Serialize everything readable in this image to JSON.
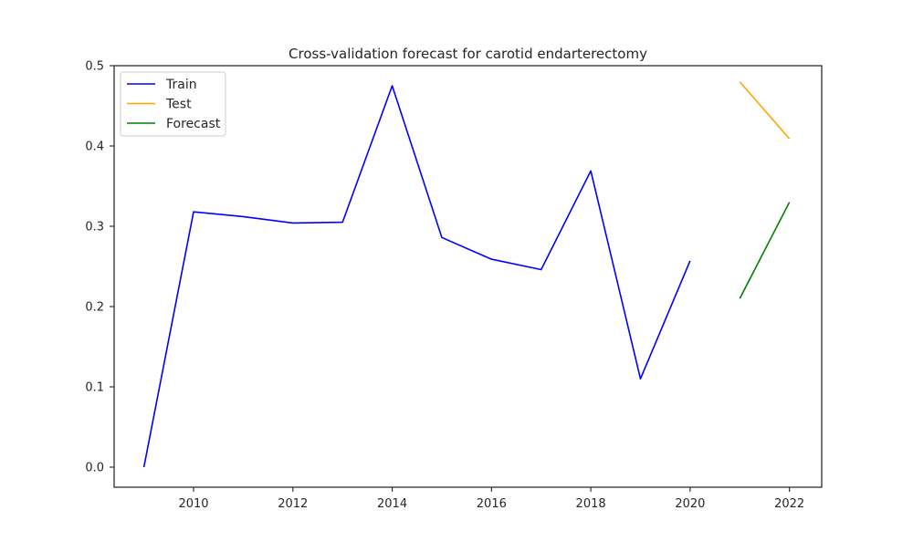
{
  "chart_data": {
    "type": "line",
    "title": "Cross-validation forecast for carotid endarterectomy",
    "xlabel": "",
    "ylabel": "",
    "xlim": [
      2008.4,
      2022.65
    ],
    "ylim": [
      -0.025,
      0.5
    ],
    "x_ticks": [
      2010,
      2012,
      2014,
      2016,
      2018,
      2020,
      2022
    ],
    "y_ticks": [
      0.0,
      0.1,
      0.2,
      0.3,
      0.4,
      0.5
    ],
    "x_tick_labels": [
      "2010",
      "2012",
      "2014",
      "2016",
      "2018",
      "2020",
      "2022"
    ],
    "y_tick_labels": [
      "0.0",
      "0.1",
      "0.2",
      "0.3",
      "0.4",
      "0.5"
    ],
    "grid": false,
    "legend_position": "top-left",
    "series": [
      {
        "name": "Train",
        "color": "#0000ff",
        "x": [
          2009,
          2010,
          2011,
          2012,
          2013,
          2014,
          2015,
          2016,
          2017,
          2018,
          2019,
          2020
        ],
        "y": [
          0.0,
          0.318,
          0.312,
          0.304,
          0.305,
          0.475,
          0.286,
          0.259,
          0.246,
          0.369,
          0.11,
          0.257
        ]
      },
      {
        "name": "Test",
        "color": "#ffa500",
        "x": [
          2021,
          2022
        ],
        "y": [
          0.48,
          0.409
        ]
      },
      {
        "name": "Forecast",
        "color": "#008000",
        "x": [
          2021,
          2022
        ],
        "y": [
          0.21,
          0.33
        ]
      }
    ]
  }
}
